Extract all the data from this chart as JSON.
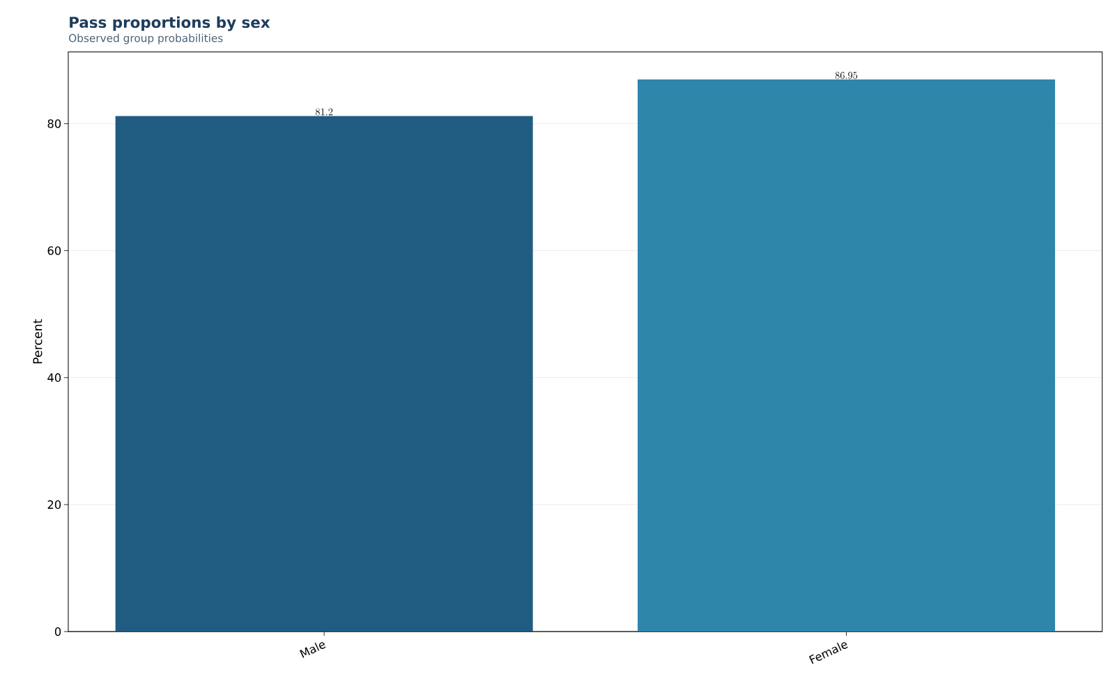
{
  "chart_data": {
    "type": "bar",
    "title": "Pass proportions by sex",
    "subtitle": "Observed group probabilities",
    "ylabel": "Percent",
    "categories": [
      "Male",
      "Female"
    ],
    "values": [
      81.2,
      86.95
    ],
    "colors": [
      "#205b82",
      "#2e86ab"
    ],
    "ylim": [
      0,
      91.3
    ],
    "yticks": [
      0,
      20,
      40,
      60,
      80
    ],
    "grid": "y",
    "data_labels": true
  }
}
